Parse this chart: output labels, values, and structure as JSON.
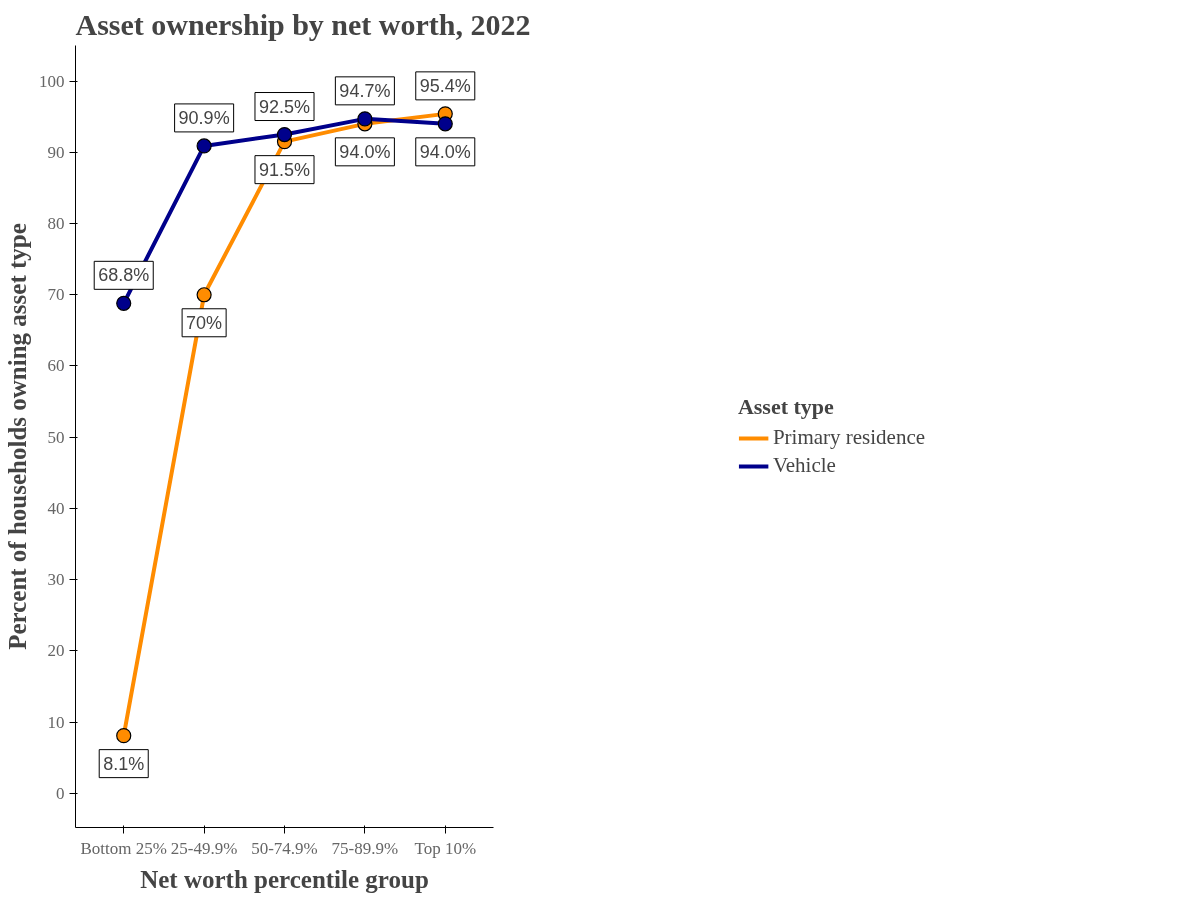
{
  "chart_data": {
    "type": "line",
    "title": "Asset ownership by net worth, 2022",
    "xlabel": "Net worth percentile group",
    "ylabel": "Percent of households owning asset type",
    "legend_title": "Asset type",
    "categories": [
      "Bottom 25%",
      "25-49.9%",
      "50-74.9%",
      "75-89.9%",
      "Top 10%"
    ],
    "series": [
      {
        "name": "Primary residence",
        "color": "#ff8c00",
        "values": [
          8.1,
          70,
          91.5,
          94.0,
          95.4
        ],
        "value_labels": [
          "8.1%",
          "70%",
          "91.5%",
          "94.0%",
          "95.4%"
        ]
      },
      {
        "name": "Vehicle",
        "color": "#00008b",
        "values": [
          68.8,
          90.9,
          92.5,
          94.7,
          94.0
        ],
        "value_labels": [
          "68.8%",
          "90.9%",
          "92.5%",
          "94.7%",
          "94.0%"
        ]
      }
    ],
    "ylim": [
      -4.8,
      105
    ],
    "yticks": [
      0,
      10,
      20,
      30,
      40,
      50,
      60,
      70,
      80,
      90,
      100
    ],
    "grid": false,
    "legend": "right",
    "marker": "circle",
    "line_style": "solid"
  }
}
